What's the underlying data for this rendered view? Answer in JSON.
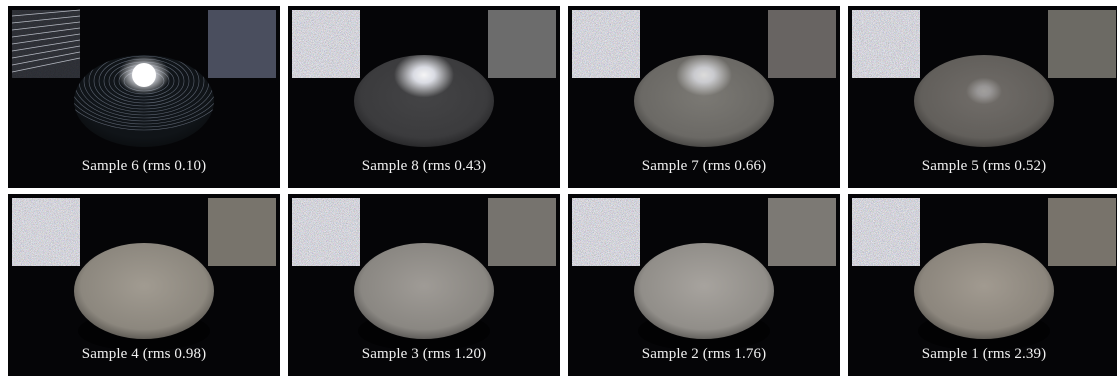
{
  "panels": [
    {
      "caption": "Sample 6 (rms 0.10)",
      "row": 0,
      "col": 0,
      "avg_color": "#4a4e5e",
      "specular": "high",
      "plate_color": "#101418"
    },
    {
      "caption": "Sample 8 (rms 0.43)",
      "row": 0,
      "col": 1,
      "avg_color": "#6c6c6c",
      "specular": "medium",
      "plate_color": "#3b3b3d"
    },
    {
      "caption": "Sample 7 (rms 0.66)",
      "row": 0,
      "col": 2,
      "avg_color": "#686462",
      "specular": "low",
      "plate_color": "#6b6965"
    },
    {
      "caption": "Sample 5 (rms 0.52)",
      "row": 0,
      "col": 3,
      "avg_color": "#6c6a64",
      "specular": "faint",
      "plate_color": "#625f5b"
    },
    {
      "caption": "Sample 4 (rms 0.98)",
      "row": 1,
      "col": 0,
      "avg_color": "#78746c",
      "specular": "none",
      "plate_color": "#8c877e"
    },
    {
      "caption": "Sample 3 (rms 1.20)",
      "row": 1,
      "col": 1,
      "avg_color": "#76736e",
      "specular": "none",
      "plate_color": "#8a8782"
    },
    {
      "caption": "Sample 2 (rms 1.76)",
      "row": 1,
      "col": 2,
      "avg_color": "#7c7974",
      "specular": "none",
      "plate_color": "#918e89"
    },
    {
      "caption": "Sample 1 (rms 2.39)",
      "row": 1,
      "col": 3,
      "avg_color": "#78736b",
      "specular": "none",
      "plate_color": "#8c867d"
    }
  ]
}
